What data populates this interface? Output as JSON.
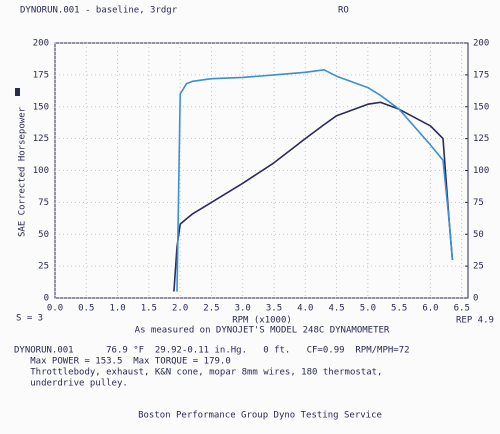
{
  "chart_data": {
    "type": "line",
    "title": "DYNORUN.001 - baseline, 3rdgr",
    "header_right": "RO",
    "ylabel": "SAE Corrected Horsepower",
    "xlabel": "RPM (x1000)",
    "corner_left": "S = 3",
    "corner_right": "REP 4.9",
    "subtitle": "As measured on DYNOJET'S MODEL 248C DYNAMOMETER",
    "footer": [
      "DYNORUN.001      76.9 °F  29.92-0.11 in.Hg.   0 ft.   CF=0.99  RPM/MPH=72",
      "   Max POWER = 153.5  Max TORQUE = 179.0",
      "   Throttlebody, exhaust, K&N cone, mopar 8mm wires, 180 thermostat,",
      "   underdrive pulley."
    ],
    "credit": "Boston Performance Group Dyno Testing Service",
    "x": [
      1.9,
      1.95,
      2.0,
      2.1,
      2.2,
      2.5,
      3.0,
      3.5,
      4.0,
      4.3,
      4.5,
      5.0,
      5.2,
      5.5,
      6.0,
      6.2,
      6.3,
      6.35
    ],
    "series": [
      {
        "color": "#2b2b5e",
        "values": [
          5,
          40,
          58,
          62,
          66,
          75,
          90,
          106,
          125,
          136,
          143,
          152,
          153.5,
          148,
          135,
          125,
          60,
          30
        ]
      },
      {
        "color": "#3c8fd2",
        "values": [
          null,
          5,
          160,
          168,
          170,
          172,
          173,
          175,
          177,
          179,
          174,
          165,
          159,
          148,
          120,
          108,
          60,
          30
        ]
      }
    ],
    "xlim": [
      0,
      6.6
    ],
    "xticks": [
      {
        "value": 0,
        "label": "0.0"
      },
      0.5,
      {
        "value": 1,
        "label": "1.0"
      },
      1.5,
      {
        "value": 2,
        "label": "2.0"
      },
      2.5,
      {
        "value": 3,
        "label": "3.0"
      },
      3.5,
      {
        "value": 4,
        "label": "4.0"
      },
      4.5,
      {
        "value": 5,
        "label": "5.0"
      },
      5.5,
      {
        "value": 6,
        "label": "6.0"
      },
      6.5
    ],
    "ylim": [
      0,
      200
    ],
    "yticks": [
      0,
      25,
      50,
      75,
      100,
      125,
      150,
      175,
      200
    ],
    "y2lim": [
      0,
      200
    ],
    "y2ticks": [
      0,
      25,
      50,
      75,
      100,
      125,
      150,
      175,
      200
    ],
    "grid": true
  }
}
